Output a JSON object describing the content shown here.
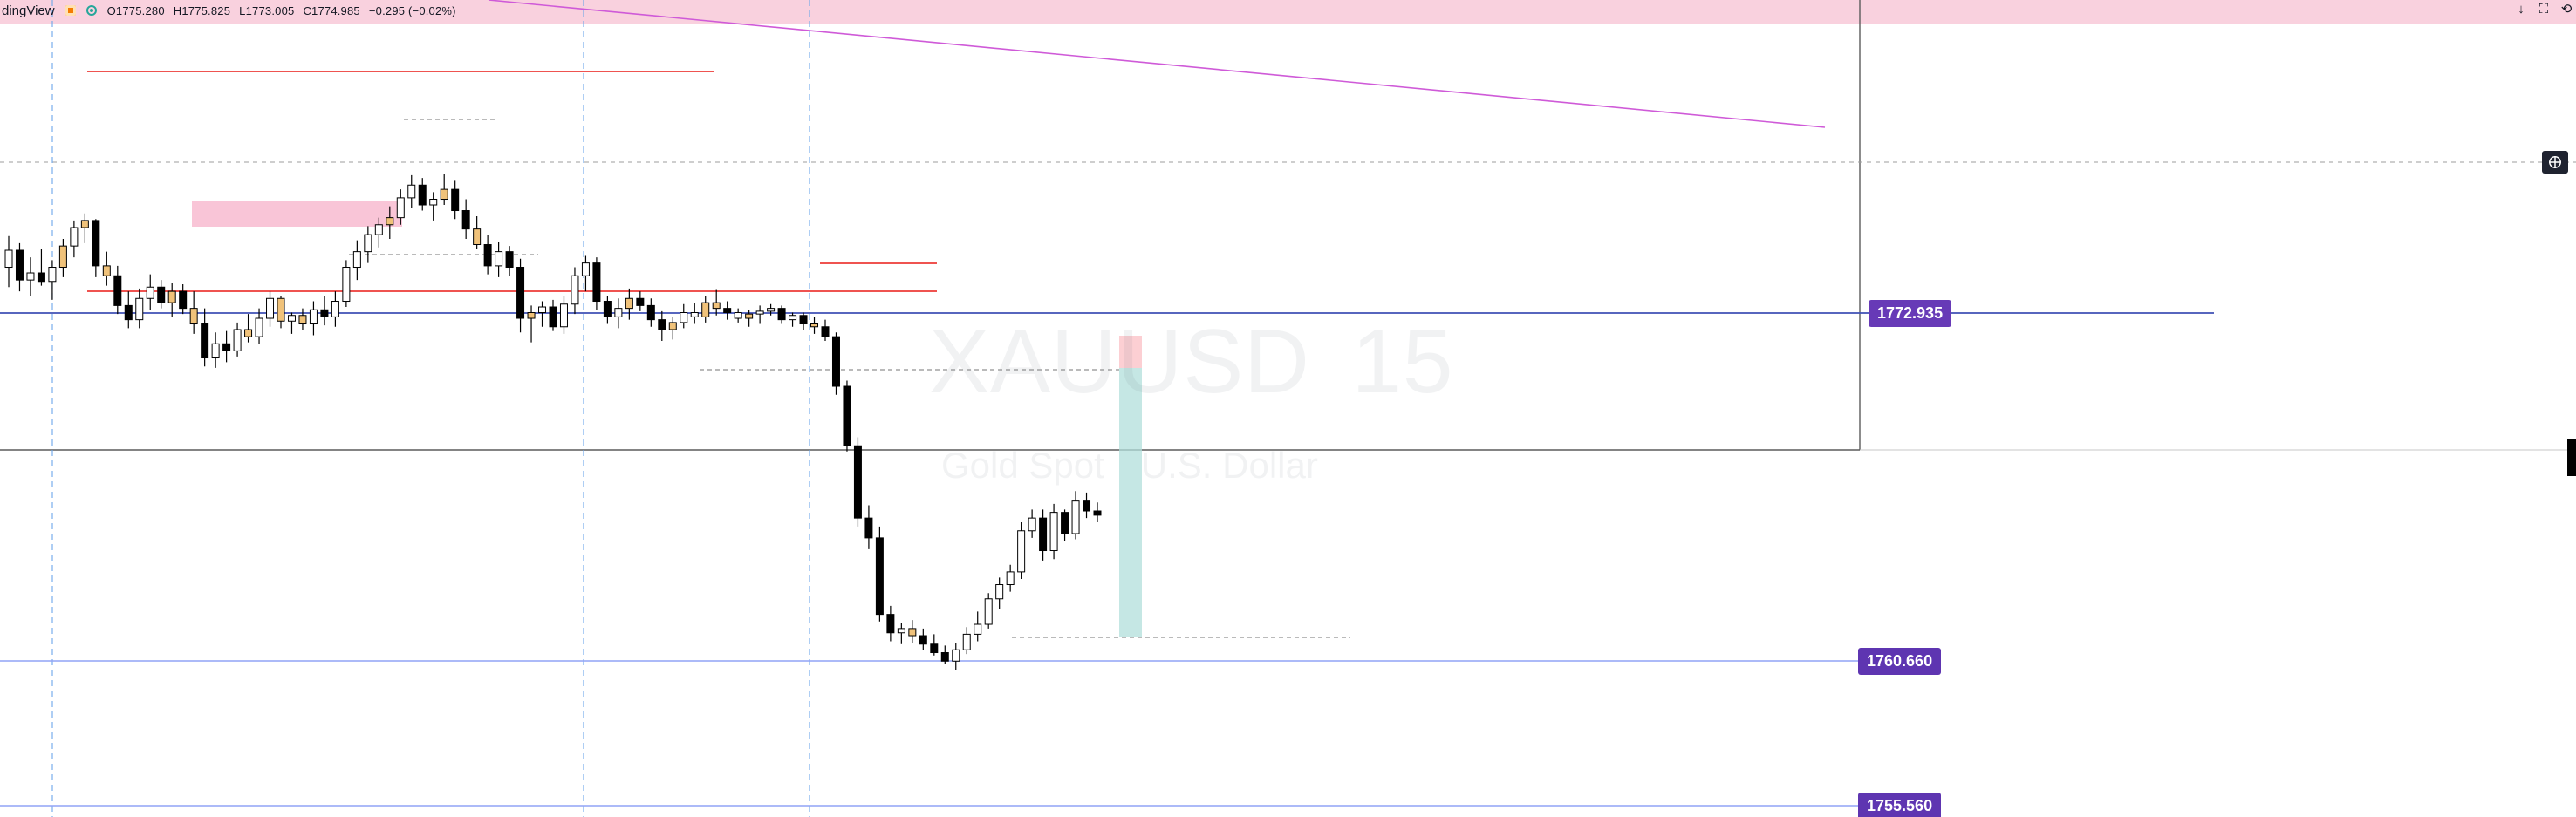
{
  "topbar": {
    "brand": "dingView",
    "ohlc": {
      "open": "O1775.280",
      "high": "H1775.825",
      "low": "L1773.005",
      "close": "C1774.985",
      "change": "−0.295 (−0.02%)"
    },
    "controls": {
      "down_arrow": "↓",
      "fullscreen": "⛶",
      "back": "⟲"
    }
  },
  "watermark": {
    "symbol": "XAUUSD",
    "interval": "15",
    "name_part_1": "Gold Spot",
    "name_part_2": "U.S. Dollar"
  },
  "price_labels": [
    "1772.935",
    "1760.660",
    "1755.560"
  ],
  "colors": {
    "up": "#ffffff",
    "down": "#000000",
    "highlight": "#f0c27a",
    "purple": "#673ab7",
    "blue_line": "#3f51b5",
    "light_blue": "#90a4f5",
    "red_line": "#ef5350",
    "pink_zone": "#f8bbd0",
    "teal_zone": "#b2dfdb"
  },
  "candles": [
    {
      "o": 1774.55,
      "h": 1775.65,
      "l": 1773.85,
      "c": 1775.15,
      "color": "up"
    },
    {
      "o": 1775.15,
      "h": 1775.4,
      "l": 1773.7,
      "c": 1774.1,
      "color": "down"
    },
    {
      "o": 1774.1,
      "h": 1774.9,
      "l": 1773.55,
      "c": 1774.35,
      "color": "up"
    },
    {
      "o": 1774.35,
      "h": 1775.2,
      "l": 1773.9,
      "c": 1774.05,
      "color": "down"
    },
    {
      "o": 1774.05,
      "h": 1774.8,
      "l": 1773.4,
      "c": 1774.55,
      "color": "up"
    },
    {
      "o": 1774.55,
      "h": 1775.55,
      "l": 1774.2,
      "c": 1775.3,
      "color": "highlight"
    },
    {
      "o": 1775.3,
      "h": 1776.2,
      "l": 1774.9,
      "c": 1775.95,
      "color": "up"
    },
    {
      "o": 1775.95,
      "h": 1776.45,
      "l": 1775.4,
      "c": 1776.2,
      "color": "highlight"
    },
    {
      "o": 1776.2,
      "h": 1776.25,
      "l": 1774.2,
      "c": 1774.6,
      "color": "down"
    },
    {
      "o": 1774.6,
      "h": 1775.1,
      "l": 1773.9,
      "c": 1774.25,
      "color": "highlight"
    },
    {
      "o": 1774.25,
      "h": 1774.6,
      "l": 1772.9,
      "c": 1773.2,
      "color": "down"
    },
    {
      "o": 1773.2,
      "h": 1773.7,
      "l": 1772.4,
      "c": 1772.7,
      "color": "down"
    },
    {
      "o": 1772.7,
      "h": 1773.8,
      "l": 1772.4,
      "c": 1773.45,
      "color": "up"
    },
    {
      "o": 1773.45,
      "h": 1774.3,
      "l": 1773.05,
      "c": 1773.85,
      "color": "up"
    },
    {
      "o": 1773.85,
      "h": 1774.1,
      "l": 1773.1,
      "c": 1773.3,
      "color": "down"
    },
    {
      "o": 1773.3,
      "h": 1774.0,
      "l": 1772.8,
      "c": 1773.7,
      "color": "highlight"
    },
    {
      "o": 1773.7,
      "h": 1773.95,
      "l": 1772.9,
      "c": 1773.1,
      "color": "down"
    },
    {
      "o": 1773.1,
      "h": 1773.7,
      "l": 1772.2,
      "c": 1772.55,
      "color": "highlight"
    },
    {
      "o": 1772.55,
      "h": 1773.1,
      "l": 1771.05,
      "c": 1771.35,
      "color": "down"
    },
    {
      "o": 1771.35,
      "h": 1772.25,
      "l": 1771.0,
      "c": 1771.85,
      "color": "up"
    },
    {
      "o": 1771.85,
      "h": 1772.3,
      "l": 1771.2,
      "c": 1771.6,
      "color": "down"
    },
    {
      "o": 1771.6,
      "h": 1772.6,
      "l": 1771.4,
      "c": 1772.35,
      "color": "up"
    },
    {
      "o": 1772.35,
      "h": 1772.9,
      "l": 1771.9,
      "c": 1772.1,
      "color": "highlight"
    },
    {
      "o": 1772.1,
      "h": 1773.1,
      "l": 1771.85,
      "c": 1772.75,
      "color": "up"
    },
    {
      "o": 1772.75,
      "h": 1773.7,
      "l": 1772.45,
      "c": 1773.45,
      "color": "up"
    },
    {
      "o": 1773.45,
      "h": 1773.55,
      "l": 1772.4,
      "c": 1772.65,
      "color": "highlight"
    },
    {
      "o": 1772.65,
      "h": 1772.95,
      "l": 1772.2,
      "c": 1772.85,
      "color": "up"
    },
    {
      "o": 1772.85,
      "h": 1773.1,
      "l": 1772.35,
      "c": 1772.55,
      "color": "highlight"
    },
    {
      "o": 1772.55,
      "h": 1773.35,
      "l": 1772.15,
      "c": 1773.05,
      "color": "up"
    },
    {
      "o": 1773.05,
      "h": 1773.55,
      "l": 1772.5,
      "c": 1772.8,
      "color": "down"
    },
    {
      "o": 1772.8,
      "h": 1773.7,
      "l": 1772.45,
      "c": 1773.35,
      "color": "up"
    },
    {
      "o": 1773.35,
      "h": 1774.8,
      "l": 1773.15,
      "c": 1774.55,
      "color": "up"
    },
    {
      "o": 1774.55,
      "h": 1775.5,
      "l": 1774.1,
      "c": 1775.1,
      "color": "up"
    },
    {
      "o": 1775.1,
      "h": 1776.0,
      "l": 1774.7,
      "c": 1775.7,
      "color": "up"
    },
    {
      "o": 1775.7,
      "h": 1776.3,
      "l": 1775.25,
      "c": 1776.05,
      "color": "up"
    },
    {
      "o": 1776.05,
      "h": 1776.7,
      "l": 1775.55,
      "c": 1776.3,
      "color": "highlight"
    },
    {
      "o": 1776.3,
      "h": 1777.3,
      "l": 1776.05,
      "c": 1777.0,
      "color": "up"
    },
    {
      "o": 1777.0,
      "h": 1777.8,
      "l": 1776.65,
      "c": 1777.45,
      "color": "up"
    },
    {
      "o": 1777.45,
      "h": 1777.7,
      "l": 1776.55,
      "c": 1776.75,
      "color": "down"
    },
    {
      "o": 1776.75,
      "h": 1777.2,
      "l": 1776.2,
      "c": 1776.95,
      "color": "up"
    },
    {
      "o": 1776.95,
      "h": 1777.85,
      "l": 1776.75,
      "c": 1777.3,
      "color": "highlight"
    },
    {
      "o": 1777.3,
      "h": 1777.6,
      "l": 1776.25,
      "c": 1776.55,
      "color": "down"
    },
    {
      "o": 1776.55,
      "h": 1776.95,
      "l": 1775.55,
      "c": 1775.9,
      "color": "down"
    },
    {
      "o": 1775.9,
      "h": 1776.35,
      "l": 1775.2,
      "c": 1775.35,
      "color": "highlight"
    },
    {
      "o": 1775.35,
      "h": 1775.7,
      "l": 1774.3,
      "c": 1774.6,
      "color": "down"
    },
    {
      "o": 1774.6,
      "h": 1775.45,
      "l": 1774.2,
      "c": 1775.1,
      "color": "up"
    },
    {
      "o": 1775.1,
      "h": 1775.3,
      "l": 1774.25,
      "c": 1774.55,
      "color": "down"
    },
    {
      "o": 1774.55,
      "h": 1774.85,
      "l": 1772.25,
      "c": 1772.75,
      "color": "down"
    },
    {
      "o": 1772.75,
      "h": 1773.2,
      "l": 1771.9,
      "c": 1772.95,
      "color": "highlight"
    },
    {
      "o": 1772.95,
      "h": 1773.35,
      "l": 1772.45,
      "c": 1773.15,
      "color": "up"
    },
    {
      "o": 1773.15,
      "h": 1773.4,
      "l": 1772.3,
      "c": 1772.45,
      "color": "down"
    },
    {
      "o": 1772.45,
      "h": 1773.55,
      "l": 1772.2,
      "c": 1773.25,
      "color": "up"
    },
    {
      "o": 1773.25,
      "h": 1774.55,
      "l": 1772.9,
      "c": 1774.25,
      "color": "up"
    },
    {
      "o": 1774.25,
      "h": 1774.95,
      "l": 1773.7,
      "c": 1774.7,
      "color": "up"
    },
    {
      "o": 1774.7,
      "h": 1774.9,
      "l": 1773.05,
      "c": 1773.35,
      "color": "down"
    },
    {
      "o": 1773.35,
      "h": 1773.55,
      "l": 1772.55,
      "c": 1772.8,
      "color": "down"
    },
    {
      "o": 1772.8,
      "h": 1773.45,
      "l": 1772.4,
      "c": 1773.1,
      "color": "up"
    },
    {
      "o": 1773.1,
      "h": 1773.8,
      "l": 1772.7,
      "c": 1773.45,
      "color": "highlight"
    },
    {
      "o": 1773.45,
      "h": 1773.7,
      "l": 1773.0,
      "c": 1773.2,
      "color": "down"
    },
    {
      "o": 1773.2,
      "h": 1773.45,
      "l": 1772.45,
      "c": 1772.7,
      "color": "down"
    },
    {
      "o": 1772.7,
      "h": 1773.0,
      "l": 1771.95,
      "c": 1772.35,
      "color": "down"
    },
    {
      "o": 1772.35,
      "h": 1772.8,
      "l": 1772.0,
      "c": 1772.6,
      "color": "highlight"
    },
    {
      "o": 1772.6,
      "h": 1773.25,
      "l": 1772.4,
      "c": 1772.95,
      "color": "up"
    },
    {
      "o": 1772.95,
      "h": 1773.3,
      "l": 1772.55,
      "c": 1772.8,
      "color": "up"
    },
    {
      "o": 1772.8,
      "h": 1773.55,
      "l": 1772.6,
      "c": 1773.3,
      "color": "highlight"
    },
    {
      "o": 1773.3,
      "h": 1773.75,
      "l": 1772.85,
      "c": 1773.1,
      "color": "highlight"
    },
    {
      "o": 1773.1,
      "h": 1773.35,
      "l": 1772.7,
      "c": 1772.95,
      "color": "down"
    },
    {
      "o": 1772.95,
      "h": 1773.1,
      "l": 1772.6,
      "c": 1772.75,
      "color": "up"
    },
    {
      "o": 1772.75,
      "h": 1773.05,
      "l": 1772.45,
      "c": 1772.9,
      "color": "highlight"
    },
    {
      "o": 1772.9,
      "h": 1773.2,
      "l": 1772.55,
      "c": 1773.0,
      "color": "up"
    },
    {
      "o": 1773.0,
      "h": 1773.25,
      "l": 1772.85,
      "c": 1773.1,
      "color": "up"
    },
    {
      "o": 1773.1,
      "h": 1773.2,
      "l": 1772.55,
      "c": 1772.7,
      "color": "down"
    },
    {
      "o": 1772.7,
      "h": 1772.95,
      "l": 1772.45,
      "c": 1772.85,
      "color": "up"
    },
    {
      "o": 1772.85,
      "h": 1772.95,
      "l": 1772.35,
      "c": 1772.55,
      "color": "down"
    },
    {
      "o": 1772.55,
      "h": 1772.8,
      "l": 1772.2,
      "c": 1772.45,
      "color": "highlight"
    },
    {
      "o": 1772.45,
      "h": 1772.7,
      "l": 1771.95,
      "c": 1772.1,
      "color": "down"
    },
    {
      "o": 1772.1,
      "h": 1772.25,
      "l": 1770.05,
      "c": 1770.35,
      "color": "down"
    },
    {
      "o": 1770.35,
      "h": 1770.55,
      "l": 1768.05,
      "c": 1768.25,
      "color": "down"
    },
    {
      "o": 1768.25,
      "h": 1768.55,
      "l": 1765.4,
      "c": 1765.7,
      "color": "down"
    },
    {
      "o": 1765.7,
      "h": 1766.15,
      "l": 1764.6,
      "c": 1765.0,
      "color": "down"
    },
    {
      "o": 1765.0,
      "h": 1765.4,
      "l": 1762.05,
      "c": 1762.3,
      "color": "down"
    },
    {
      "o": 1762.3,
      "h": 1762.6,
      "l": 1761.35,
      "c": 1761.65,
      "color": "down"
    },
    {
      "o": 1761.65,
      "h": 1762.0,
      "l": 1761.25,
      "c": 1761.8,
      "color": "up"
    },
    {
      "o": 1761.8,
      "h": 1762.1,
      "l": 1761.3,
      "c": 1761.55,
      "color": "highlight"
    },
    {
      "o": 1761.55,
      "h": 1761.8,
      "l": 1761.05,
      "c": 1761.25,
      "color": "down"
    },
    {
      "o": 1761.25,
      "h": 1761.6,
      "l": 1760.85,
      "c": 1760.95,
      "color": "down"
    },
    {
      "o": 1760.95,
      "h": 1761.2,
      "l": 1760.55,
      "c": 1760.65,
      "color": "down"
    },
    {
      "o": 1760.65,
      "h": 1761.3,
      "l": 1760.35,
      "c": 1761.05,
      "color": "up"
    },
    {
      "o": 1761.05,
      "h": 1761.85,
      "l": 1760.9,
      "c": 1761.6,
      "color": "up"
    },
    {
      "o": 1761.6,
      "h": 1762.4,
      "l": 1761.35,
      "c": 1761.95,
      "color": "up"
    },
    {
      "o": 1761.95,
      "h": 1763.05,
      "l": 1761.8,
      "c": 1762.85,
      "color": "up"
    },
    {
      "o": 1762.85,
      "h": 1763.6,
      "l": 1762.5,
      "c": 1763.35,
      "color": "up"
    },
    {
      "o": 1763.35,
      "h": 1764.05,
      "l": 1763.1,
      "c": 1763.8,
      "color": "up"
    },
    {
      "o": 1763.8,
      "h": 1765.55,
      "l": 1763.55,
      "c": 1765.25,
      "color": "up"
    },
    {
      "o": 1765.25,
      "h": 1766.0,
      "l": 1765.0,
      "c": 1765.7,
      "color": "up"
    },
    {
      "o": 1765.7,
      "h": 1766.0,
      "l": 1764.2,
      "c": 1764.55,
      "color": "down"
    },
    {
      "o": 1764.55,
      "h": 1766.2,
      "l": 1764.25,
      "c": 1765.9,
      "color": "up"
    },
    {
      "o": 1765.9,
      "h": 1766.0,
      "l": 1764.9,
      "c": 1765.15,
      "color": "down"
    },
    {
      "o": 1765.15,
      "h": 1766.65,
      "l": 1764.95,
      "c": 1766.3,
      "color": "up"
    },
    {
      "o": 1766.3,
      "h": 1766.6,
      "l": 1765.7,
      "c": 1765.95,
      "color": "down"
    },
    {
      "o": 1765.95,
      "h": 1766.25,
      "l": 1765.55,
      "c": 1765.8,
      "color": "down"
    }
  ],
  "chart_data": {
    "type": "table",
    "title": "",
    "price_levels": [
      1772.935,
      1760.66,
      1755.56
    ],
    "ohlc_text": "O1775.280 H1775.825 L1773.005 C1774.985 −0.295 (−0.02%)"
  }
}
